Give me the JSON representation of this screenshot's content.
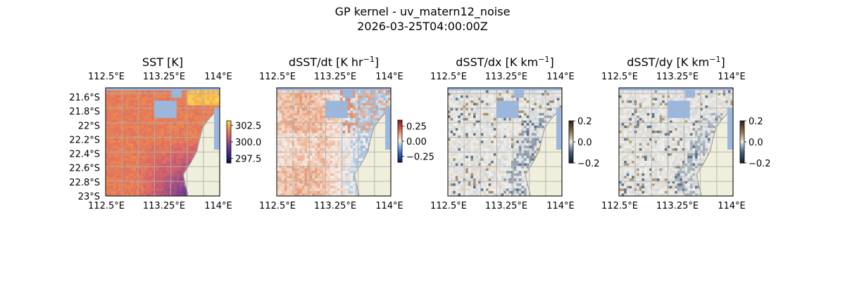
{
  "figure": {
    "title_line1": "GP kernel - uv_matern12_noise",
    "title_line2": "2026-03-25T04:00:00Z"
  },
  "colors": {
    "ocean_mask": "#9bb7df",
    "land": "#efefdb",
    "coast": "#a0a0a0",
    "grid": "#b0b0b0"
  },
  "chart_data": [
    {
      "type": "heatmap",
      "title": "SST [K]",
      "colormap": "thermal",
      "x_ticks": [
        "112.5°E",
        "113.25°E",
        "114°E"
      ],
      "x_tick_values": [
        112.5,
        113.25,
        114.0
      ],
      "y_ticks": [
        "21.6°S",
        "21.8°S",
        "22°S",
        "22.2°S",
        "22.4°S",
        "22.6°S",
        "22.8°S",
        "23°S"
      ],
      "y_tick_values": [
        -21.6,
        -21.8,
        -22.0,
        -22.2,
        -22.4,
        -22.6,
        -22.8,
        -23.0
      ],
      "xlim": [
        112.5,
        114.0
      ],
      "ylim": [
        -23.0,
        -21.55
      ],
      "colorbar": {
        "ticks": [
          "302.5",
          "300.0",
          "297.5"
        ],
        "tick_values": [
          302.5,
          300.0,
          297.5
        ],
        "vmin": 296.8,
        "vmax": 303.2
      },
      "grid": true
    },
    {
      "type": "heatmap",
      "title": "dSST/dt [K hr",
      "title_sup": "−1",
      "title_end": "]",
      "colormap": "balance",
      "x_ticks": [
        "112.5°E",
        "113.25°E",
        "114°E"
      ],
      "x_tick_values": [
        112.5,
        113.25,
        114.0
      ],
      "xlim": [
        112.5,
        114.0
      ],
      "ylim": [
        -23.0,
        -21.55
      ],
      "colorbar": {
        "ticks": [
          "0.25",
          "0.00",
          "−0.25"
        ],
        "tick_values": [
          0.25,
          0.0,
          -0.25
        ],
        "vmin": -0.35,
        "vmax": 0.35
      },
      "grid": true
    },
    {
      "type": "heatmap",
      "title": "dSST/dx [K km",
      "title_sup": "−1",
      "title_end": "]",
      "colormap": "diff",
      "x_ticks": [
        "112.5°E",
        "113.25°E",
        "114°E"
      ],
      "x_tick_values": [
        112.5,
        113.25,
        114.0
      ],
      "xlim": [
        112.5,
        114.0
      ],
      "ylim": [
        -23.0,
        -21.55
      ],
      "colorbar": {
        "ticks": [
          "0.2",
          "0.0",
          "−0.2"
        ],
        "tick_values": [
          0.2,
          0.0,
          -0.2
        ],
        "vmin": -0.2,
        "vmax": 0.2
      },
      "grid": true
    },
    {
      "type": "heatmap",
      "title": "dSST/dy [K km",
      "title_sup": "−1",
      "title_end": "]",
      "colormap": "diff",
      "x_ticks": [
        "112.5°E",
        "113.25°E",
        "114°E"
      ],
      "x_tick_values": [
        112.5,
        113.25,
        114.0
      ],
      "xlim": [
        112.5,
        114.0
      ],
      "ylim": [
        -23.0,
        -21.55
      ],
      "colorbar": {
        "ticks": [
          "0.2",
          "0.0",
          "−0.2"
        ],
        "tick_values": [
          0.2,
          0.0,
          -0.2
        ],
        "vmin": -0.2,
        "vmax": 0.2
      },
      "grid": true
    }
  ]
}
